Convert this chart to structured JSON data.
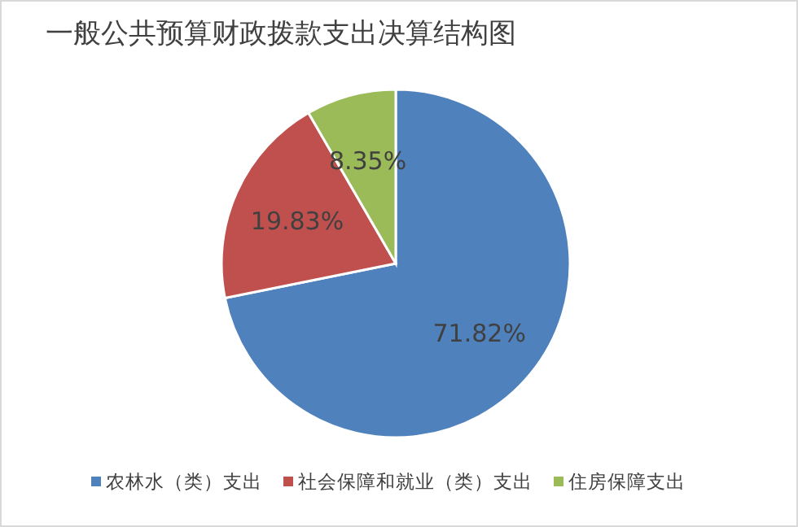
{
  "chart_data": {
    "type": "pie",
    "title": "一般公共预算财政拨款支出决算结构图",
    "categories": [
      "农林水（类）支出",
      "社会保障和就业（类）支出",
      "住房保障支出"
    ],
    "values": [
      71.82,
      19.83,
      8.35
    ],
    "colors": [
      "#4f81bd",
      "#c0504d",
      "#9bbb59"
    ],
    "value_labels": [
      "71.82%",
      "19.83%",
      "8.35%"
    ],
    "legend": "bottom"
  }
}
